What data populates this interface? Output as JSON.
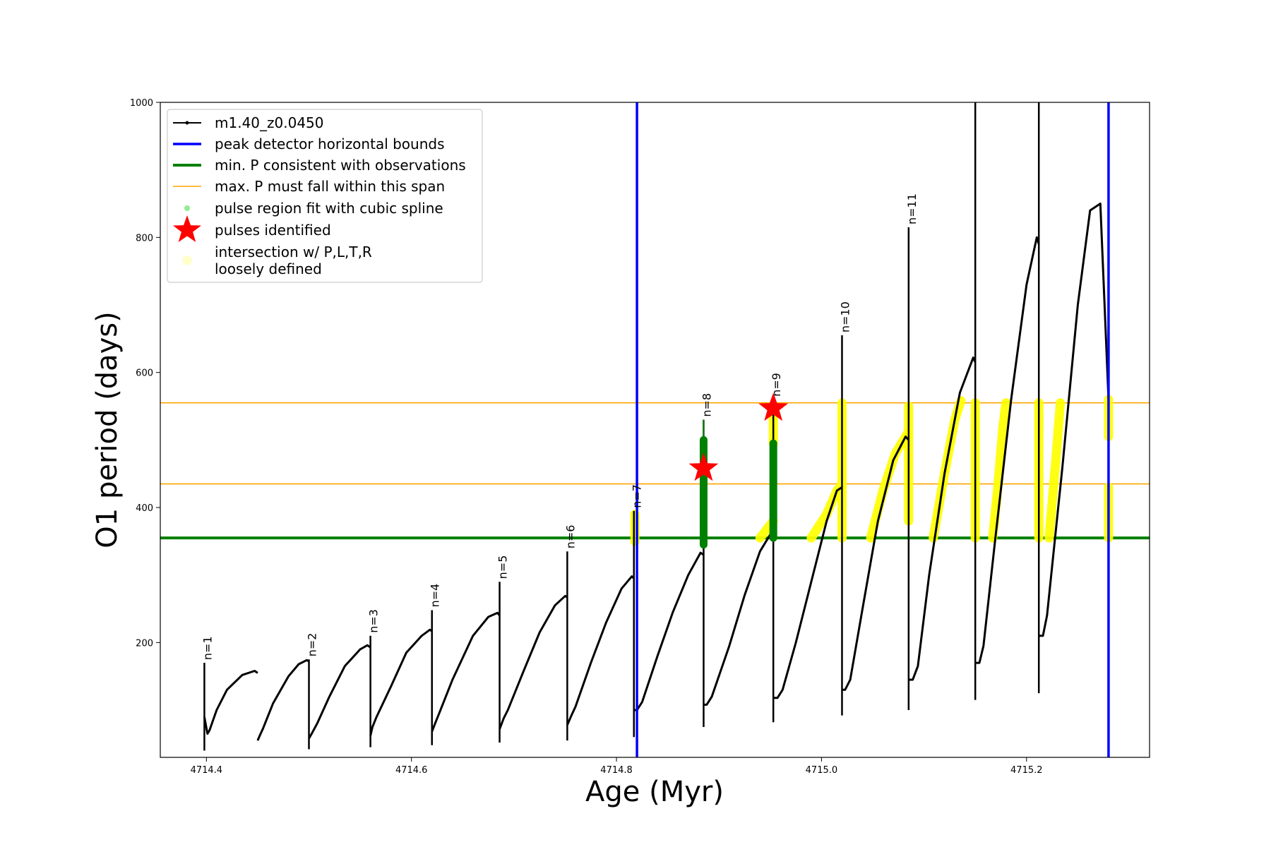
{
  "chart_data": {
    "type": "line",
    "xlabel": "Age (Myr)",
    "ylabel": "O1 period (days)",
    "xlim": [
      4714.355,
      4715.32
    ],
    "ylim": [
      30,
      1000
    ],
    "xticks": [
      4714.4,
      4714.6,
      4714.8,
      4715.0,
      4715.2
    ],
    "xtick_labels": [
      "4714.4",
      "4714.6",
      "4714.8",
      "4715.0",
      "4715.2"
    ],
    "yticks": [
      200,
      400,
      600,
      800,
      1000
    ],
    "ytick_labels": [
      "200",
      "400",
      "600",
      "800",
      "1000"
    ],
    "grid": false,
    "legend_position": "top-left",
    "legend": [
      {
        "key": "model",
        "label": "m1.40_z0.0450"
      },
      {
        "key": "peak",
        "label": "peak detector horizontal bounds"
      },
      {
        "key": "minp",
        "label": "min. P consistent with observations"
      },
      {
        "key": "maxp",
        "label": "max. P must fall within this span"
      },
      {
        "key": "spline",
        "label": "pulse region fit with cubic spline"
      },
      {
        "key": "pulses",
        "label": "pulses identified"
      },
      {
        "key": "loose",
        "label": "intersection w/ P,L,T,R",
        "label2": "loosely defined"
      }
    ],
    "colors": {
      "model": "#000000",
      "peak": "#0000ff",
      "minp": "#008000",
      "maxp": "#ffa500",
      "spline": "#90ee90",
      "pulses": "#ff0000",
      "loose": "#ffff00"
    },
    "peak_detector_bounds": [
      4714.82,
      4715.28
    ],
    "min_period": 355,
    "max_period_span": [
      435,
      555
    ],
    "pulses": [
      {
        "label": "n=1",
        "x": 4714.398,
        "peak": 170,
        "min": 40
      },
      {
        "label": "n=2",
        "x": 4714.5,
        "peak": 175,
        "min": 42
      },
      {
        "label": "n=3",
        "x": 4714.56,
        "peak": 210,
        "min": 45
      },
      {
        "label": "n=4",
        "x": 4714.62,
        "peak": 248,
        "min": 48
      },
      {
        "label": "n=5",
        "x": 4714.686,
        "peak": 290,
        "min": 52
      },
      {
        "label": "n=6",
        "x": 4714.752,
        "peak": 335,
        "min": 55
      },
      {
        "label": "n=7",
        "x": 4714.817,
        "peak": 395,
        "min": 60
      },
      {
        "label": "n=8",
        "x": 4714.885,
        "peak": 530,
        "min": 75
      },
      {
        "label": "n=9",
        "x": 4714.953,
        "peak": 560,
        "min": 82
      },
      {
        "label": "n=10",
        "x": 4715.02,
        "peak": 655,
        "min": 92
      },
      {
        "label": "n=11",
        "x": 4715.085,
        "peak": 815,
        "min": 100
      }
    ],
    "model_segments": [
      {
        "x": [
          4714.398,
          4714.401,
          4714.403,
          4714.41,
          4714.42,
          4714.435,
          4714.447,
          4714.45
        ],
        "y": [
          90,
          65,
          70,
          100,
          130,
          152,
          158,
          155
        ]
      },
      {
        "x": [
          4714.45,
          4714.452,
          4714.455,
          4714.465,
          4714.48,
          4714.49,
          4714.498,
          4714.5
        ],
        "y": [
          55,
          62,
          72,
          110,
          150,
          168,
          174,
          172
        ]
      },
      {
        "x": [
          4714.5,
          4714.503,
          4714.508,
          4714.52,
          4714.535,
          4714.55,
          4714.557,
          4714.56
        ],
        "y": [
          58,
          66,
          80,
          120,
          165,
          190,
          196,
          193
        ]
      },
      {
        "x": [
          4714.56,
          4714.562,
          4714.566,
          4714.58,
          4714.595,
          4714.61,
          4714.618,
          4714.62
        ],
        "y": [
          62,
          75,
          90,
          135,
          185,
          210,
          219,
          217
        ]
      },
      {
        "x": [
          4714.62,
          4714.623,
          4714.627,
          4714.64,
          4714.66,
          4714.675,
          4714.684,
          4714.686
        ],
        "y": [
          68,
          80,
          95,
          145,
          210,
          238,
          244,
          240
        ]
      },
      {
        "x": [
          4714.686,
          4714.69,
          4714.694,
          4714.71,
          4714.725,
          4714.74,
          4714.75,
          4714.752
        ],
        "y": [
          72,
          88,
          100,
          160,
          215,
          255,
          269,
          267
        ]
      },
      {
        "x": [
          4714.752,
          4714.756,
          4714.76,
          4714.775,
          4714.79,
          4714.805,
          4714.815,
          4714.817
        ],
        "y": [
          78,
          92,
          105,
          170,
          230,
          280,
          298,
          295
        ]
      },
      {
        "x": [
          4714.817,
          4714.82,
          4714.825,
          4714.84,
          4714.855,
          4714.87,
          4714.882,
          4714.885
        ],
        "y": [
          100,
          100,
          112,
          180,
          245,
          300,
          333,
          330
        ]
      },
      {
        "x": [
          4714.885,
          4714.888,
          4714.893,
          4714.91,
          4714.925,
          4714.94,
          4714.95,
          4714.953
        ],
        "y": [
          108,
          108,
          120,
          195,
          270,
          335,
          360,
          355
        ]
      },
      {
        "x": [
          4714.953,
          4714.957,
          4714.962,
          4714.975,
          4714.99,
          4715.005,
          4715.015,
          4715.02
        ],
        "y": [
          118,
          118,
          130,
          200,
          290,
          380,
          425,
          430
        ]
      },
      {
        "x": [
          4715.02,
          4715.023,
          4715.028,
          4715.04,
          4715.055,
          4715.07,
          4715.082,
          4715.085
        ],
        "y": [
          130,
          130,
          145,
          250,
          380,
          470,
          505,
          500
        ]
      },
      {
        "x": [
          4715.085,
          4715.089,
          4715.094,
          4715.105,
          4715.12,
          4715.135,
          4715.148,
          4715.15
        ],
        "y": [
          145,
          145,
          165,
          300,
          450,
          570,
          622,
          615
        ]
      },
      {
        "x": [
          4715.15,
          4715.154,
          4715.158,
          4715.17,
          4715.185,
          4715.2,
          4715.21,
          4715.212
        ],
        "y": [
          170,
          170,
          195,
          360,
          560,
          730,
          800,
          790
        ]
      },
      {
        "x": [
          4715.212,
          4715.216,
          4715.22,
          4715.235,
          4715.25,
          4715.262,
          4715.272,
          4715.28
        ],
        "y": [
          210,
          210,
          240,
          460,
          700,
          840,
          850,
          560
        ]
      }
    ],
    "spikes": [
      {
        "x": 4715.15,
        "low": 115,
        "high": 1000
      },
      {
        "x": 4715.212,
        "low": 125,
        "high": 1000
      }
    ],
    "spline_regions": [
      {
        "x": 4714.885,
        "low": 345,
        "high": 500,
        "thin_top": 530
      },
      {
        "x": 4714.953,
        "low": 355,
        "high": 495,
        "thin_top": 495
      }
    ],
    "pulses_identified": [
      {
        "x": 4714.885,
        "y": 458
      },
      {
        "x": 4714.953,
        "y": 547
      }
    ],
    "loose_intersections": [
      {
        "x": [
          4714.818,
          4714.818
        ],
        "y": [
          350,
          390
        ]
      },
      {
        "x": [
          4714.94,
          4714.953
        ],
        "y": [
          355,
          380
        ]
      },
      {
        "x": [
          4714.953,
          4714.953
        ],
        "y": [
          495,
          550
        ]
      },
      {
        "x": [
          4714.99,
          4715.005,
          4715.015,
          4715.019
        ],
        "y": [
          355,
          390,
          425,
          432
        ]
      },
      {
        "x": [
          4715.02,
          4715.02
        ],
        "y": [
          355,
          555
        ]
      },
      {
        "x": [
          4715.048,
          4715.06,
          4715.072,
          4715.084
        ],
        "y": [
          355,
          425,
          480,
          510
        ]
      },
      {
        "x": [
          4715.085,
          4715.085
        ],
        "y": [
          380,
          550
        ]
      },
      {
        "x": [
          4715.109,
          4715.12,
          4715.13,
          4715.136
        ],
        "y": [
          355,
          450,
          530,
          558
        ]
      },
      {
        "x": [
          4715.15,
          4715.15
        ],
        "y": [
          355,
          555
        ]
      },
      {
        "x": [
          4715.167,
          4715.172,
          4715.177,
          4715.18
        ],
        "y": [
          355,
          430,
          520,
          555
        ]
      },
      {
        "x": [
          4715.212,
          4715.212
        ],
        "y": [
          355,
          555
        ]
      },
      {
        "x": [
          4715.222,
          4715.228,
          4715.233
        ],
        "y": [
          355,
          460,
          555
        ]
      },
      {
        "x": [
          4715.28,
          4715.28
        ],
        "y": [
          355,
          430
        ]
      },
      {
        "x": [
          4715.28,
          4715.28
        ],
        "y": [
          505,
          560
        ]
      }
    ]
  }
}
